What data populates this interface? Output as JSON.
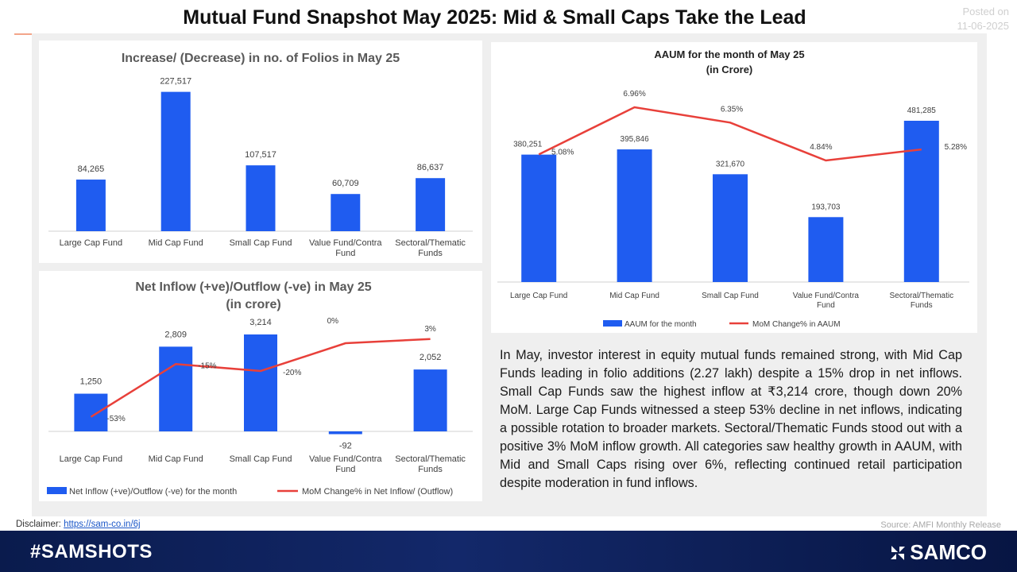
{
  "header": {
    "title": "Mutual Fund Snapshot May 2025: Mid & Small Caps Take the Lead",
    "posted_label": "Posted on",
    "posted_date": "11-06-2025"
  },
  "colors": {
    "bar": "#1f5cf0",
    "line": "#e8403a",
    "footer": "#0e2058"
  },
  "chart_data": [
    {
      "id": "folios",
      "type": "bar",
      "title": "Increase/ (Decrease) in no. of Folios in May 25",
      "categories": [
        "Large Cap Fund",
        "Mid Cap Fund",
        "Small Cap Fund",
        "Value Fund/Contra Fund",
        "Sectoral/Thematic Funds"
      ],
      "values": [
        84265,
        227517,
        107517,
        60709,
        86637
      ],
      "value_labels": [
        "84,265",
        "227,517",
        "107,517",
        "60,709",
        "86,637"
      ],
      "ylim": [
        0,
        240000
      ]
    },
    {
      "id": "inflow",
      "type": "bar+line",
      "title": "Net Inflow (+ve)/Outflow (-ve) in May 25",
      "subtitle": "(in crore)",
      "categories": [
        "Large Cap Fund",
        "Mid Cap Fund",
        "Small Cap Fund",
        "Value Fund/Contra Fund",
        "Sectoral/Thematic Funds"
      ],
      "series": [
        {
          "name": "Net Inflow (+ve)/Outflow (-ve) for the month",
          "type": "bar",
          "values": [
            1250,
            2809,
            3214,
            -92,
            2052
          ],
          "labels": [
            "1,250",
            "2,809",
            "3,214",
            "-92",
            "2,052"
          ]
        },
        {
          "name": "MoM Change% in Net Inflow/ (Outflow)",
          "type": "line",
          "values": [
            -53,
            -15,
            -20,
            0,
            3
          ],
          "labels": [
            "-53%",
            "-15%",
            "-20%",
            "0%",
            "3%"
          ]
        }
      ]
    },
    {
      "id": "aaum",
      "type": "bar+line",
      "title": "AAUM for the month of May 25",
      "subtitle": "(in Crore)",
      "categories": [
        "Large Cap Fund",
        "Mid Cap Fund",
        "Small Cap Fund",
        "Value Fund/Contra Fund",
        "Sectoral/Thematic Funds"
      ],
      "series": [
        {
          "name": "AAUM for the month",
          "type": "bar",
          "values": [
            380251,
            395846,
            321670,
            193703,
            481285
          ],
          "labels": [
            "380,251",
            "395,846",
            "321,670",
            "193,703",
            "481,285"
          ]
        },
        {
          "name": "MoM Change% in AAUM",
          "type": "line",
          "values": [
            5.08,
            6.96,
            6.35,
            4.84,
            5.28
          ],
          "labels": [
            "5.08%",
            "6.96%",
            "6.35%",
            "4.84%",
            "5.28%"
          ]
        }
      ]
    }
  ],
  "commentary": "In May, investor interest in equity mutual funds remained strong, with Mid Cap Funds leading in folio additions (2.27 lakh) despite a 15% drop in net inflows. Small Cap Funds saw the highest inflow at ₹3,214 crore, though down 20% MoM. Large Cap Funds witnessed a steep 53% decline in net inflows, indicating a possible rotation to broader markets. Sectoral/Thematic Funds stood out with a positive 3% MoM inflow growth. All categories saw healthy growth in AAUM, with Mid and Small Caps rising over 6%, reflecting continued retail participation despite moderation in fund inflows.",
  "footer": {
    "disclaimer_label": "Disclaimer:",
    "disclaimer_link": "https://sam-co.in/6j",
    "source": "Source: AMFI Monthly Release",
    "hashtag": "#SAMSHOTS",
    "brand": "SAMCO"
  }
}
